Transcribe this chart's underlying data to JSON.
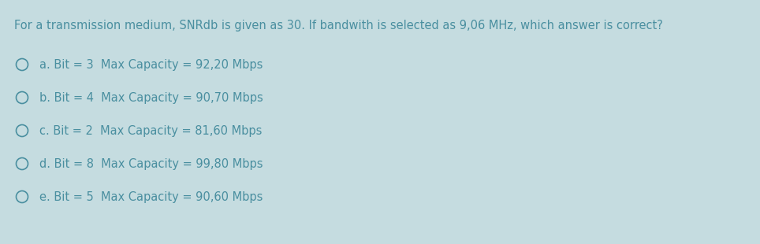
{
  "background_color": "#c5dce0",
  "text_color": "#4a8fa0",
  "question": "For a transmission medium, SNRdb is given as 30. If bandwith is selected as 9,06 MHz, which answer is correct?",
  "options": [
    "a. Bit = 3  Max Capacity = 92,20 Mbps",
    "b. Bit = 4  Max Capacity = 90,70 Mbps",
    "c. Bit = 2  Max Capacity = 81,60 Mbps",
    "d. Bit = 8  Max Capacity = 99,80 Mbps",
    "e. Bit = 5  Max Capacity = 90,60 Mbps"
  ],
  "question_fontsize": 10.5,
  "option_fontsize": 10.5,
  "fig_width": 9.64,
  "fig_height": 3.1,
  "dpi": 100
}
